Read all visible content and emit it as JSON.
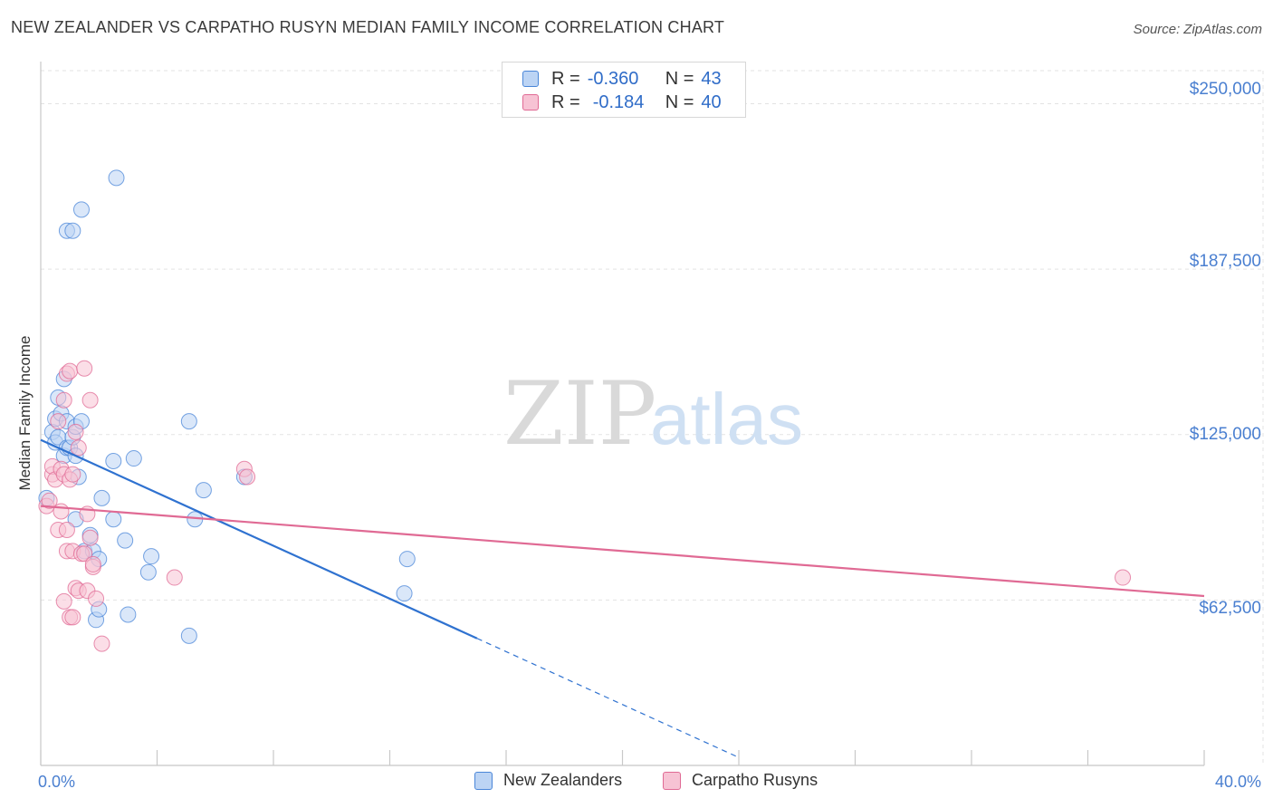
{
  "header": {
    "title": "NEW ZEALANDER VS CARPATHO RUSYN MEDIAN FAMILY INCOME CORRELATION CHART",
    "source_label": "Source:",
    "source_value": "ZipAtlas.com"
  },
  "watermark": {
    "part1": "ZIP",
    "part2": "atlas"
  },
  "colors": {
    "blue": "#4a86d8",
    "blue_fill": "#bcd4f4",
    "pink": "#e06a94",
    "pink_fill": "#f7c3d4",
    "tick_text": "#4a7fd0",
    "grid": "#e3e3e3"
  },
  "legend": {
    "rows": [
      {
        "r_label": "R =",
        "r_value": "-0.360",
        "n_label": "N =",
        "n_value": "43"
      },
      {
        "r_label": "R =",
        "r_value": "-0.184",
        "n_label": "N =",
        "n_value": "40"
      }
    ]
  },
  "bottom_legend": {
    "items": [
      {
        "label": "New Zealanders"
      },
      {
        "label": "Carpatho Rusyns"
      }
    ]
  },
  "chart_data": {
    "type": "scatter",
    "title": "NEW ZEALANDER VS CARPATHO RUSYN MEDIAN FAMILY INCOME CORRELATION CHART",
    "xlabel": "",
    "ylabel": "Median Family Income",
    "xlim": [
      0,
      40
    ],
    "ylim": [
      0,
      262500
    ],
    "x_tick_labels": {
      "0": "0.0%",
      "40": "40.0%"
    },
    "y_ticks": [
      62500,
      125000,
      187500,
      250000
    ],
    "y_tick_labels": [
      "$62,500",
      "$125,000",
      "$187,500",
      "$250,000"
    ],
    "grid": true,
    "legend_position": "top-center",
    "series": [
      {
        "name": "New Zealanders",
        "r": -0.36,
        "n": 43,
        "points": [
          [
            0.2,
            101000
          ],
          [
            0.4,
            126000
          ],
          [
            0.5,
            122000
          ],
          [
            0.5,
            131000
          ],
          [
            0.6,
            139000
          ],
          [
            0.7,
            133000
          ],
          [
            0.6,
            124000
          ],
          [
            0.8,
            146000
          ],
          [
            0.8,
            117000
          ],
          [
            0.9,
            130000
          ],
          [
            0.9,
            120000
          ],
          [
            0.9,
            202000
          ],
          [
            1.0,
            120000
          ],
          [
            1.1,
            202000
          ],
          [
            1.1,
            124000
          ],
          [
            1.2,
            93000
          ],
          [
            1.2,
            128000
          ],
          [
            1.2,
            117000
          ],
          [
            1.3,
            109000
          ],
          [
            1.4,
            210000
          ],
          [
            1.4,
            130000
          ],
          [
            1.5,
            81000
          ],
          [
            1.7,
            87000
          ],
          [
            1.8,
            81000
          ],
          [
            1.9,
            55000
          ],
          [
            2.0,
            78000
          ],
          [
            2.0,
            59000
          ],
          [
            2.1,
            101000
          ],
          [
            2.5,
            93000
          ],
          [
            2.5,
            115000
          ],
          [
            2.6,
            222000
          ],
          [
            2.9,
            85000
          ],
          [
            3.0,
            57000
          ],
          [
            3.2,
            116000
          ],
          [
            3.7,
            73000
          ],
          [
            3.8,
            79000
          ],
          [
            5.1,
            130000
          ],
          [
            5.1,
            49000
          ],
          [
            5.3,
            93000
          ],
          [
            5.6,
            104000
          ],
          [
            7.0,
            109000
          ],
          [
            12.5,
            65000
          ],
          [
            12.6,
            78000
          ]
        ],
        "trend": {
          "x_start": 0.0,
          "y_start": 123000,
          "x_end": 15.0,
          "y_end": 48000,
          "dash_to_x": 24.0,
          "dash_to_y": 3000
        }
      },
      {
        "name": "Carpatho Rusyns",
        "r": -0.184,
        "n": 40,
        "points": [
          [
            0.2,
            98000
          ],
          [
            0.3,
            100000
          ],
          [
            0.4,
            110000
          ],
          [
            0.4,
            113000
          ],
          [
            0.5,
            108000
          ],
          [
            0.6,
            89000
          ],
          [
            0.6,
            130000
          ],
          [
            0.7,
            112000
          ],
          [
            0.7,
            96000
          ],
          [
            0.8,
            110000
          ],
          [
            0.8,
            62000
          ],
          [
            0.8,
            138000
          ],
          [
            0.9,
            148000
          ],
          [
            0.9,
            89000
          ],
          [
            0.9,
            81000
          ],
          [
            1.0,
            56000
          ],
          [
            1.0,
            108000
          ],
          [
            1.0,
            149000
          ],
          [
            1.1,
            81000
          ],
          [
            1.1,
            56000
          ],
          [
            1.1,
            110000
          ],
          [
            1.2,
            67000
          ],
          [
            1.2,
            126000
          ],
          [
            1.3,
            120000
          ],
          [
            1.3,
            66000
          ],
          [
            1.4,
            80000
          ],
          [
            1.5,
            150000
          ],
          [
            1.5,
            80000
          ],
          [
            1.6,
            66000
          ],
          [
            1.6,
            95000
          ],
          [
            1.7,
            138000
          ],
          [
            1.7,
            86000
          ],
          [
            1.8,
            75000
          ],
          [
            1.8,
            76000
          ],
          [
            1.9,
            63000
          ],
          [
            2.1,
            46000
          ],
          [
            4.6,
            71000
          ],
          [
            7.0,
            112000
          ],
          [
            7.1,
            109000
          ],
          [
            37.2,
            71000
          ]
        ],
        "trend": {
          "x_start": 0.0,
          "y_start": 98000,
          "x_end": 40.0,
          "y_end": 64000
        }
      }
    ]
  }
}
